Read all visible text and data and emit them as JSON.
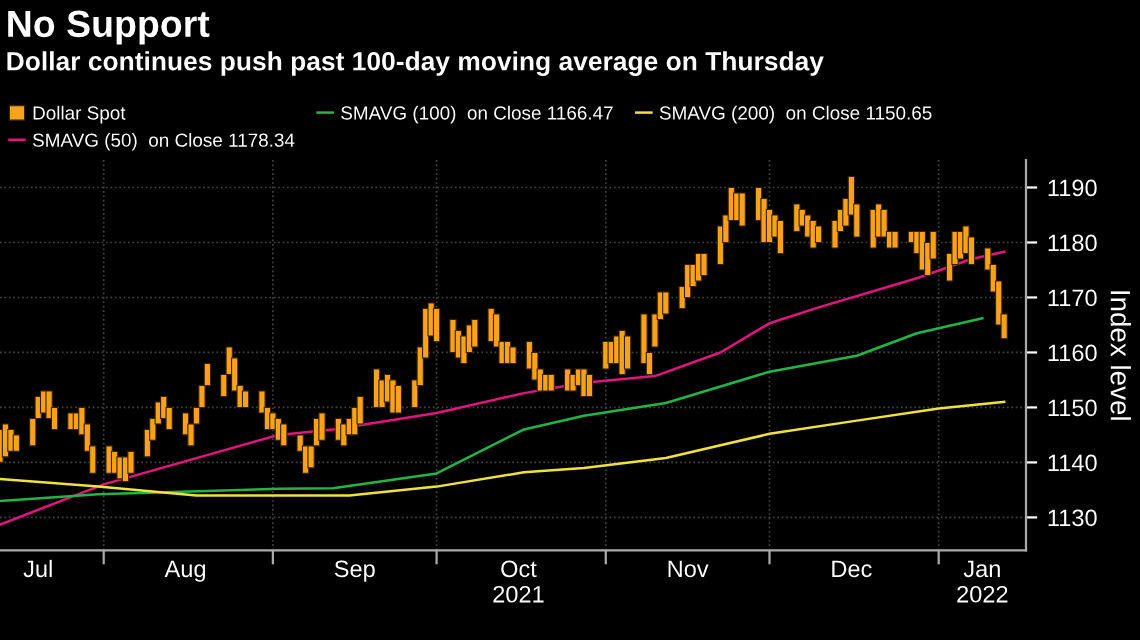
{
  "chart_data": {
    "type": "bar",
    "title": "No Support",
    "subtitle": "Dollar continues push past 100-day moving average on Thursday",
    "ylabel": "Index level",
    "xlim": [
      "2021-07-13",
      "2022-01-17"
    ],
    "xticks": [
      {
        "value": "2021-07-20",
        "label": "Jul"
      },
      {
        "value": "2021-08-01",
        "label": null
      },
      {
        "value": "2021-08-16",
        "label": "Aug"
      },
      {
        "value": "2021-09-01",
        "label": null
      },
      {
        "value": "2021-09-16",
        "label": "Sep"
      },
      {
        "value": "2021-10-01",
        "label": null
      },
      {
        "value": "2021-10-16",
        "label": "Oct\n2021"
      },
      {
        "value": "2021-11-01",
        "label": null
      },
      {
        "value": "2021-11-16",
        "label": "Nov"
      },
      {
        "value": "2021-12-01",
        "label": null
      },
      {
        "value": "2021-12-16",
        "label": "Dec"
      },
      {
        "value": "2022-01-01",
        "label": null
      },
      {
        "value": "2022-01-09",
        "label": "Jan\n2022"
      }
    ],
    "ylim": [
      1124,
      1195
    ],
    "yticks": [
      1130,
      1140,
      1150,
      1160,
      1170,
      1180,
      1190
    ],
    "grid": true,
    "legend": "top left",
    "series": [
      {
        "name": "Dollar Spot",
        "color": "#f7a21b",
        "x": [
          "2021-07-13",
          "2021-07-14",
          "2021-07-15",
          "2021-07-16",
          "2021-07-19",
          "2021-07-20",
          "2021-07-21",
          "2021-07-22",
          "2021-07-23",
          "2021-07-26",
          "2021-07-27",
          "2021-07-28",
          "2021-07-29",
          "2021-07-30",
          "2021-08-02",
          "2021-08-03",
          "2021-08-04",
          "2021-08-05",
          "2021-08-06",
          "2021-08-09",
          "2021-08-10",
          "2021-08-11",
          "2021-08-12",
          "2021-08-13",
          "2021-08-16",
          "2021-08-17",
          "2021-08-18",
          "2021-08-19",
          "2021-08-20",
          "2021-08-23",
          "2021-08-24",
          "2021-08-25",
          "2021-08-26",
          "2021-08-27",
          "2021-08-30",
          "2021-08-31",
          "2021-09-01",
          "2021-09-02",
          "2021-09-03",
          "2021-09-06",
          "2021-09-07",
          "2021-09-08",
          "2021-09-09",
          "2021-09-10",
          "2021-09-13",
          "2021-09-14",
          "2021-09-15",
          "2021-09-16",
          "2021-09-17",
          "2021-09-20",
          "2021-09-21",
          "2021-09-22",
          "2021-09-23",
          "2021-09-24",
          "2021-09-27",
          "2021-09-28",
          "2021-09-29",
          "2021-09-30",
          "2021-10-01",
          "2021-10-04",
          "2021-10-05",
          "2021-10-06",
          "2021-10-07",
          "2021-10-08",
          "2021-10-11",
          "2021-10-12",
          "2021-10-13",
          "2021-10-14",
          "2021-10-15",
          "2021-10-18",
          "2021-10-19",
          "2021-10-20",
          "2021-10-21",
          "2021-10-22",
          "2021-10-25",
          "2021-10-26",
          "2021-10-27",
          "2021-10-28",
          "2021-10-29",
          "2021-11-01",
          "2021-11-02",
          "2021-11-03",
          "2021-11-04",
          "2021-11-05",
          "2021-11-08",
          "2021-11-09",
          "2021-11-10",
          "2021-11-11",
          "2021-11-12",
          "2021-11-15",
          "2021-11-16",
          "2021-11-17",
          "2021-11-18",
          "2021-11-19",
          "2021-11-22",
          "2021-11-23",
          "2021-11-24",
          "2021-11-25",
          "2021-11-26",
          "2021-11-29",
          "2021-11-30",
          "2021-12-01",
          "2021-12-02",
          "2021-12-03",
          "2021-12-06",
          "2021-12-07",
          "2021-12-08",
          "2021-12-09",
          "2021-12-10",
          "2021-12-13",
          "2021-12-14",
          "2021-12-15",
          "2021-12-16",
          "2021-12-17",
          "2021-12-20",
          "2021-12-21",
          "2021-12-22",
          "2021-12-23",
          "2021-12-24",
          "2021-12-27",
          "2021-12-28",
          "2021-12-29",
          "2021-12-30",
          "2021-12-31",
          "2022-01-03",
          "2022-01-04",
          "2022-01-05",
          "2022-01-06",
          "2022-01-07",
          "2022-01-10",
          "2022-01-11",
          "2022-01-12",
          "2022-01-13"
        ],
        "base": [
          1140,
          1141,
          1142,
          1142,
          1143,
          1148,
          1149,
          1148,
          1146,
          1146,
          1146,
          1145,
          1142,
          1138,
          1138,
          1138,
          1137,
          1136.5,
          1138,
          1141,
          1144,
          1147,
          1148,
          1146,
          1145,
          1143,
          1147,
          1150,
          1154,
          1152,
          1156,
          1153,
          1150,
          1150,
          1149,
          1146,
          1146,
          1144,
          1143,
          1142,
          1138,
          1139,
          1143,
          1144,
          1144,
          1143,
          1145,
          1145,
          1147,
          1150,
          1150,
          1151,
          1149,
          1149,
          1150,
          1154,
          1159,
          1163,
          1162,
          1160,
          1159,
          1158,
          1160,
          1161,
          1162,
          1161,
          1158,
          1158,
          1158,
          1157,
          1155,
          1153,
          1153,
          1153,
          1153,
          1153,
          1154,
          1152,
          1152,
          1157,
          1158,
          1158,
          1156,
          1157,
          1158,
          1156,
          1161,
          1166,
          1167,
          1168,
          1170,
          1172,
          1173,
          1174,
          1176,
          1180,
          1184,
          1184,
          1183,
          1184,
          1180,
          1180,
          1181,
          1178,
          1182,
          1183,
          1181,
          1179,
          1180,
          1179,
          1182,
          1183,
          1185,
          1181,
          1179,
          1181,
          1181,
          1179,
          1179,
          1180,
          1178,
          1175,
          1174,
          1177,
          1173,
          1176,
          1177,
          1178,
          1176,
          1175,
          1171,
          1165,
          1162.5
        ],
        "values": [
          6,
          6,
          4,
          3,
          5,
          4,
          4,
          5,
          4,
          3,
          3,
          5,
          5,
          5,
          5,
          4,
          4,
          4.5,
          4,
          5,
          4,
          4,
          4,
          4,
          4,
          4,
          3,
          4,
          4,
          4,
          5,
          6,
          4,
          3,
          4,
          4,
          3,
          4,
          4,
          3,
          5,
          4,
          5,
          5,
          4,
          4,
          3,
          5,
          5,
          7,
          5,
          5,
          6,
          5,
          5,
          7,
          9,
          6,
          6,
          6,
          5,
          5,
          5,
          5,
          6,
          6,
          4,
          4,
          3,
          5,
          5,
          4,
          3,
          3,
          4,
          3,
          3,
          5,
          4,
          5,
          4,
          5,
          8,
          6,
          9,
          4,
          6,
          5,
          4,
          4,
          6,
          4,
          5,
          4,
          7,
          5,
          6,
          5,
          6,
          6,
          8,
          6,
          4,
          6,
          5,
          3,
          4,
          5,
          3,
          5,
          4,
          5,
          7,
          6,
          7,
          6,
          5,
          3,
          3,
          2,
          4,
          7,
          6,
          5,
          5,
          6,
          5,
          5,
          5,
          4,
          5,
          8,
          4.5
        ]
      },
      {
        "name": "SMAVG (50)  on Close 1178.34",
        "type": "line",
        "color": "#e0157f",
        "x": [
          "2021-07-13",
          "2021-08-01",
          "2021-09-02",
          "2021-09-12",
          "2021-10-01",
          "2021-10-17",
          "2021-10-28",
          "2021-11-10",
          "2021-11-22",
          "2021-12-01",
          "2021-12-10",
          "2021-12-28",
          "2022-01-07",
          "2022-01-13"
        ],
        "values": [
          1128.7,
          1136,
          1145,
          1146,
          1149,
          1152.6,
          1154.5,
          1155.7,
          1160,
          1165.3,
          1168.2,
          1173.5,
          1177,
          1178.3
        ]
      },
      {
        "name": "SMAVG (100)  on Close 1166.47",
        "type": "line",
        "color": "#22b444",
        "x": [
          "2021-07-13",
          "2021-07-31",
          "2021-09-02",
          "2021-09-12",
          "2021-10-01",
          "2021-10-17",
          "2021-10-28",
          "2021-11-12",
          "2021-12-01",
          "2021-12-17",
          "2021-12-28",
          "2022-01-09"
        ],
        "values": [
          1133,
          1134.2,
          1135.2,
          1135.3,
          1138,
          1146,
          1148.5,
          1150.8,
          1156.5,
          1159.4,
          1163.5,
          1166.2
        ]
      },
      {
        "name": "SMAVG (200)  on Close 1150.65",
        "type": "line",
        "color": "#efe23a",
        "x": [
          "2021-07-13",
          "2021-07-31",
          "2021-08-18",
          "2021-09-02",
          "2021-09-15",
          "2021-10-01",
          "2021-10-17",
          "2021-10-28",
          "2021-11-12",
          "2021-12-01",
          "2021-12-17",
          "2022-01-01",
          "2022-01-13"
        ],
        "values": [
          1137,
          1135.6,
          1134,
          1134,
          1134,
          1135.6,
          1138.2,
          1139,
          1140.8,
          1145.2,
          1147.6,
          1149.8,
          1151
        ]
      }
    ]
  }
}
